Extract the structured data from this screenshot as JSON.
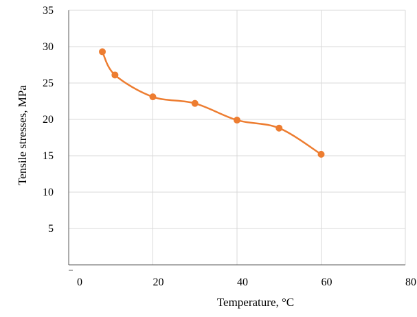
{
  "chart_data": {
    "type": "line",
    "title": "",
    "xlabel": "Temperature, °C",
    "ylabel": "Tensile stresses, MPa",
    "xlim": [
      0,
      80
    ],
    "ylim": [
      0,
      35
    ],
    "x_ticks": [
      0,
      20,
      40,
      60,
      80
    ],
    "y_ticks": [
      5,
      10,
      15,
      20,
      25,
      30,
      35
    ],
    "grid": {
      "vertical": true,
      "horizontal": true
    },
    "legend": "none",
    "smooth": true,
    "colors": {
      "series": "#ED7D31",
      "grid": "#D9D9D9",
      "axis": "#595959"
    },
    "series": [
      {
        "x": [
          8,
          11,
          20,
          30,
          40,
          50,
          60
        ],
        "y": [
          29.3,
          26.1,
          23.1,
          22.2,
          19.9,
          18.8,
          15.2
        ]
      }
    ]
  }
}
